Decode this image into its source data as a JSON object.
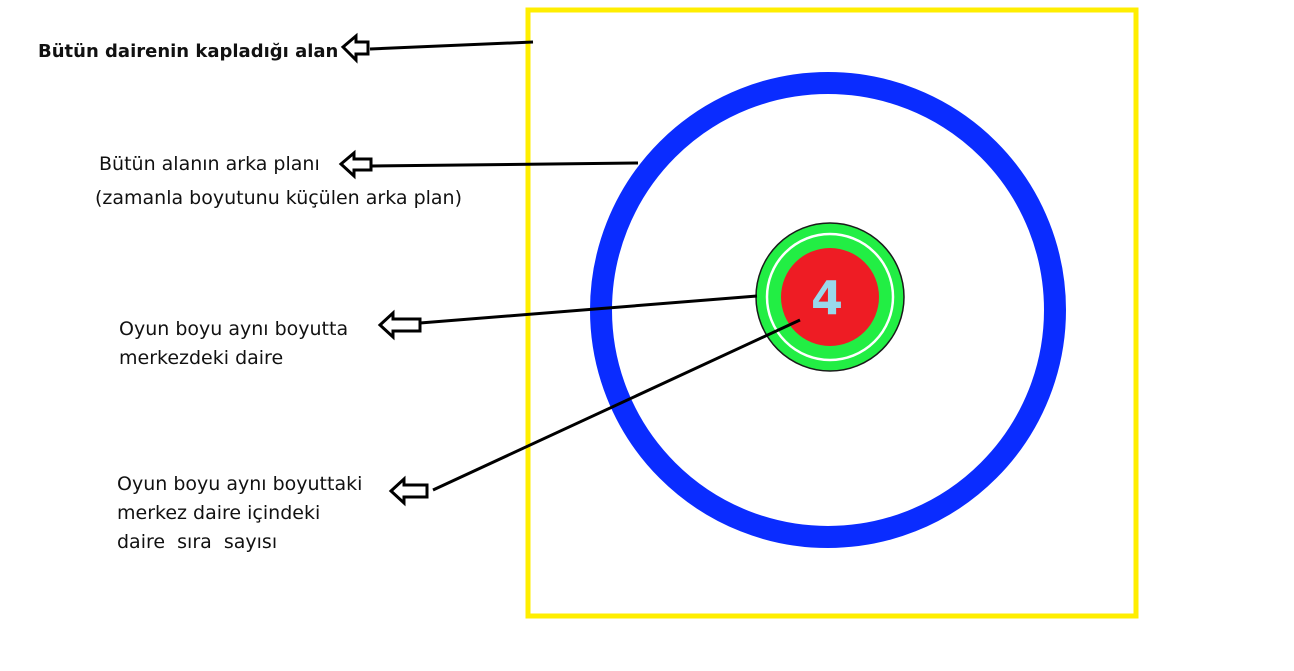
{
  "labels": {
    "whole_area": "Bütün dairenin kapladığı alan",
    "background_line1": "Bütün alanın arka planı",
    "background_line2": "(zamanla boyutunu küçülen arka plan)",
    "center_circle_line1": "Oyun boyu aynı boyutta",
    "center_circle_line2": "merkezdeki daire",
    "order_number_line1": "Oyun boyu aynı boyuttaki",
    "order_number_line2": "merkez daire içindeki",
    "order_number_line3": "daire  sıra  sayısı"
  },
  "center_number": "4",
  "colors": {
    "frame": "#ffee00",
    "shrinking_ring": "#0a2cff",
    "outer_circle": "#22ee44",
    "inner_circle": "#ee1c24",
    "number": "#99d9ea",
    "arrows": "#000000"
  }
}
